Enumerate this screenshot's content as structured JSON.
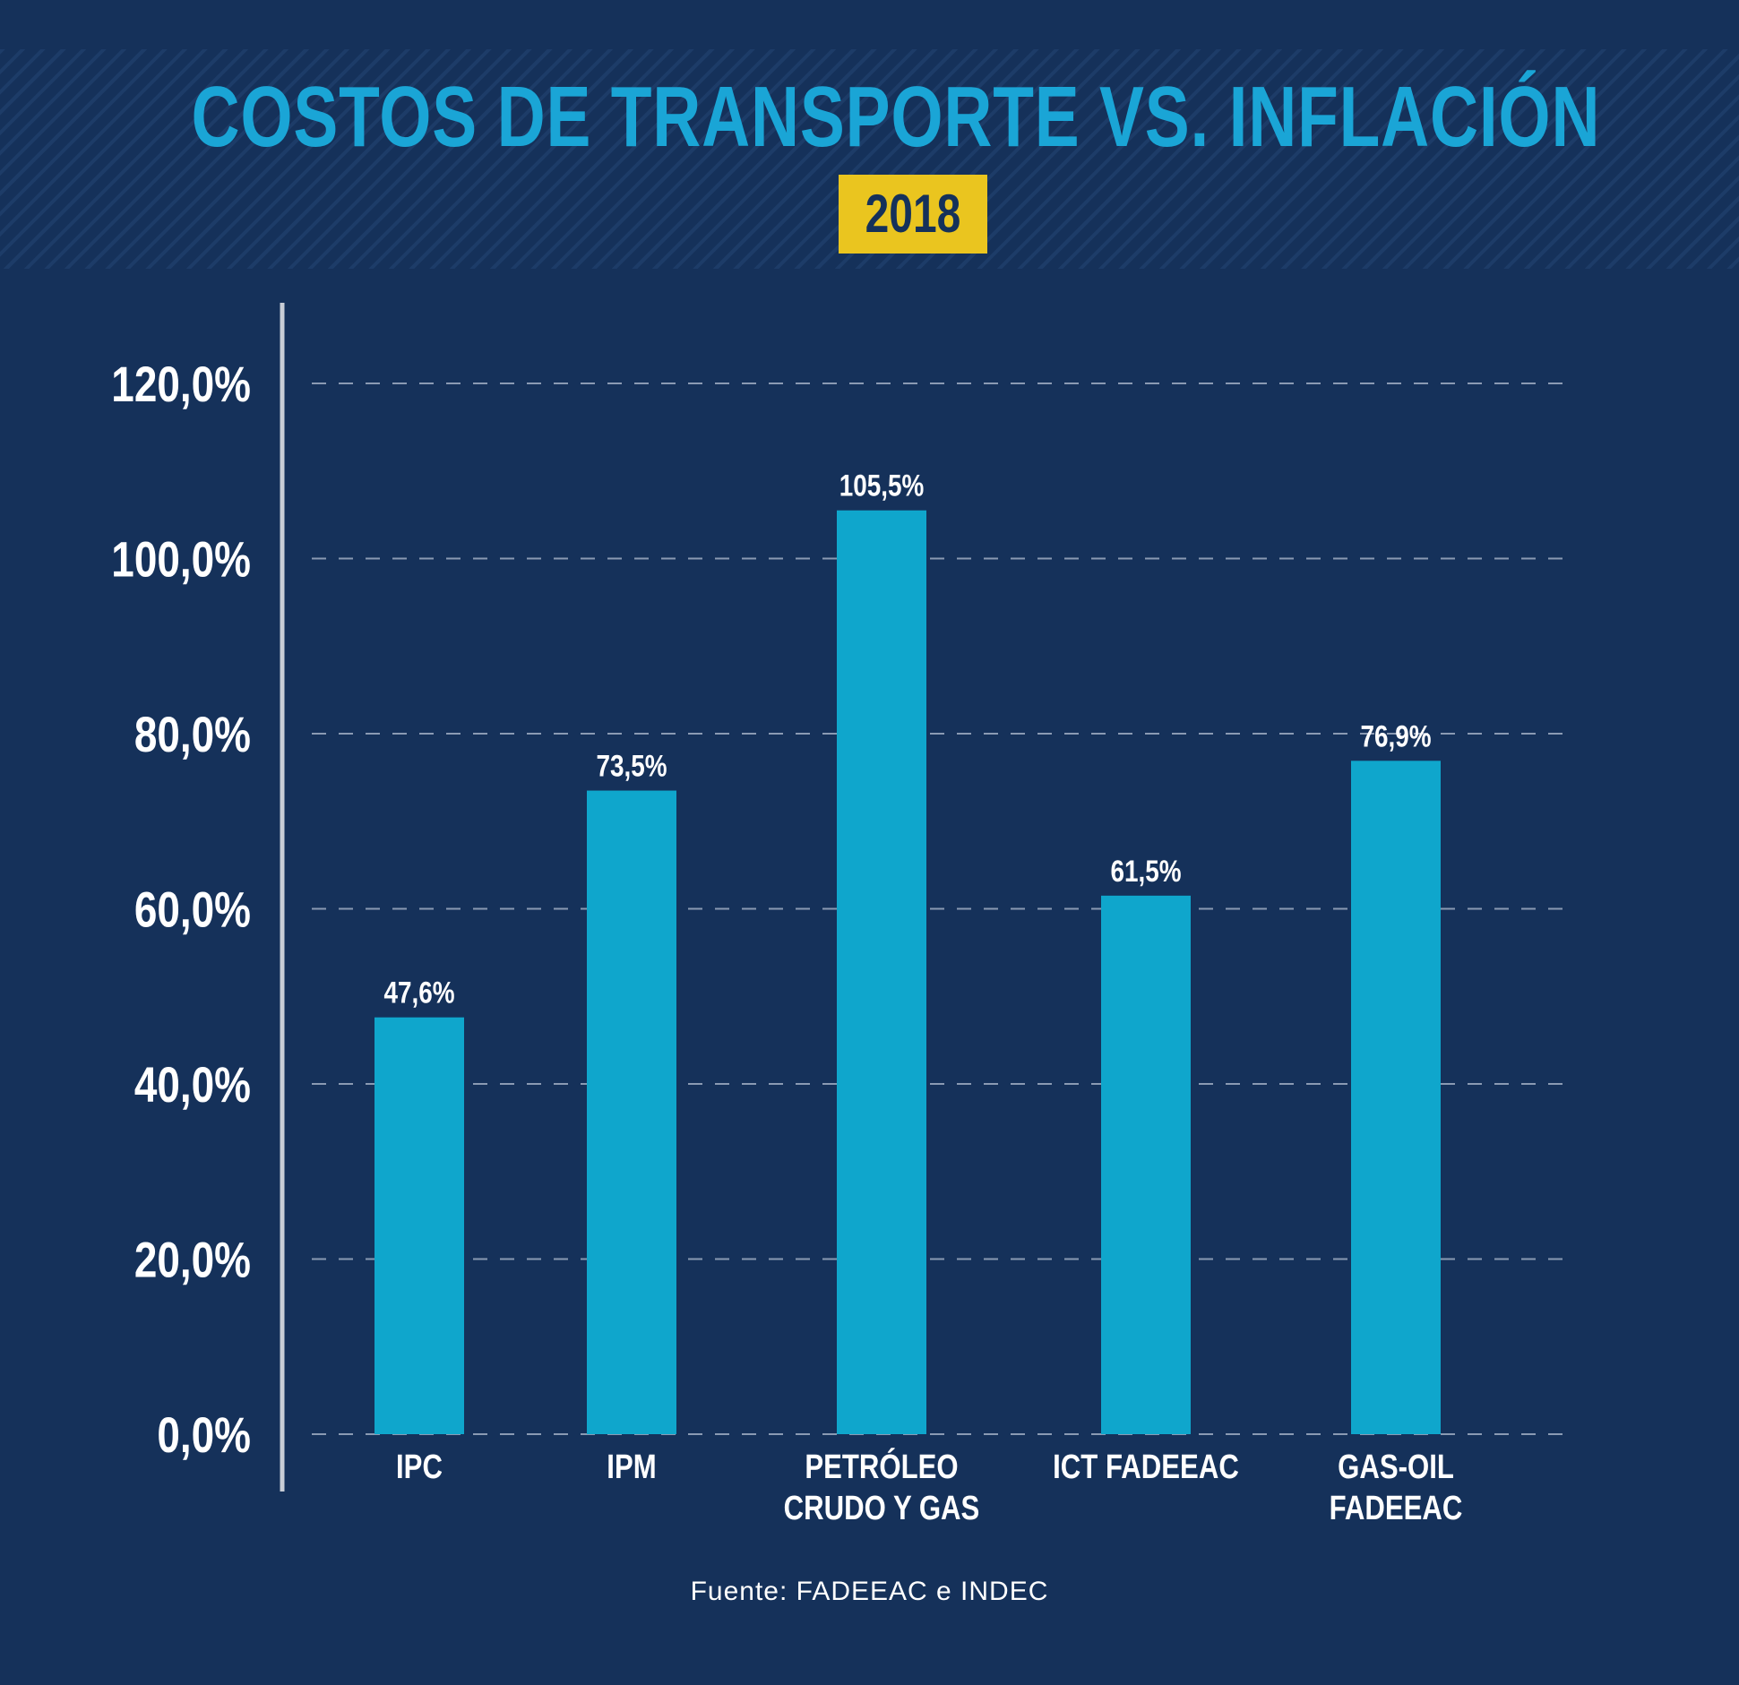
{
  "title": "COSTOS DE TRANSPORTE VS. INFLACIÓN",
  "year_badge": "2018",
  "source": "Fuente: FADEEAC e INDEC",
  "colors": {
    "background": "#15315a",
    "title": "#1aa5d6",
    "badge": "#eac51f",
    "bar": "#0fa6cc",
    "grid": "#8a9ab3",
    "axis": "#c8cdd6",
    "text": "#ffffff"
  },
  "chart_data": {
    "type": "bar",
    "categories": [
      [
        "IPC"
      ],
      [
        "IPM"
      ],
      [
        "PETRÓLEO",
        "CRUDO Y GAS"
      ],
      [
        "ICT FADEEAC"
      ],
      [
        "GAS-OIL",
        "FADEEAC"
      ]
    ],
    "values": [
      47.6,
      73.5,
      105.5,
      61.5,
      76.9
    ],
    "value_labels": [
      "47,6%",
      "73,5%",
      "105,5%",
      "61,5%",
      "76,9%"
    ],
    "y_ticks": [
      "0,0%",
      "20,0%",
      "40,0%",
      "60,0%",
      "80,0%",
      "100,0%",
      "120,0%"
    ],
    "ylim": [
      0,
      120
    ],
    "grid": true,
    "grid_style": "dashed",
    "legend": "none"
  }
}
